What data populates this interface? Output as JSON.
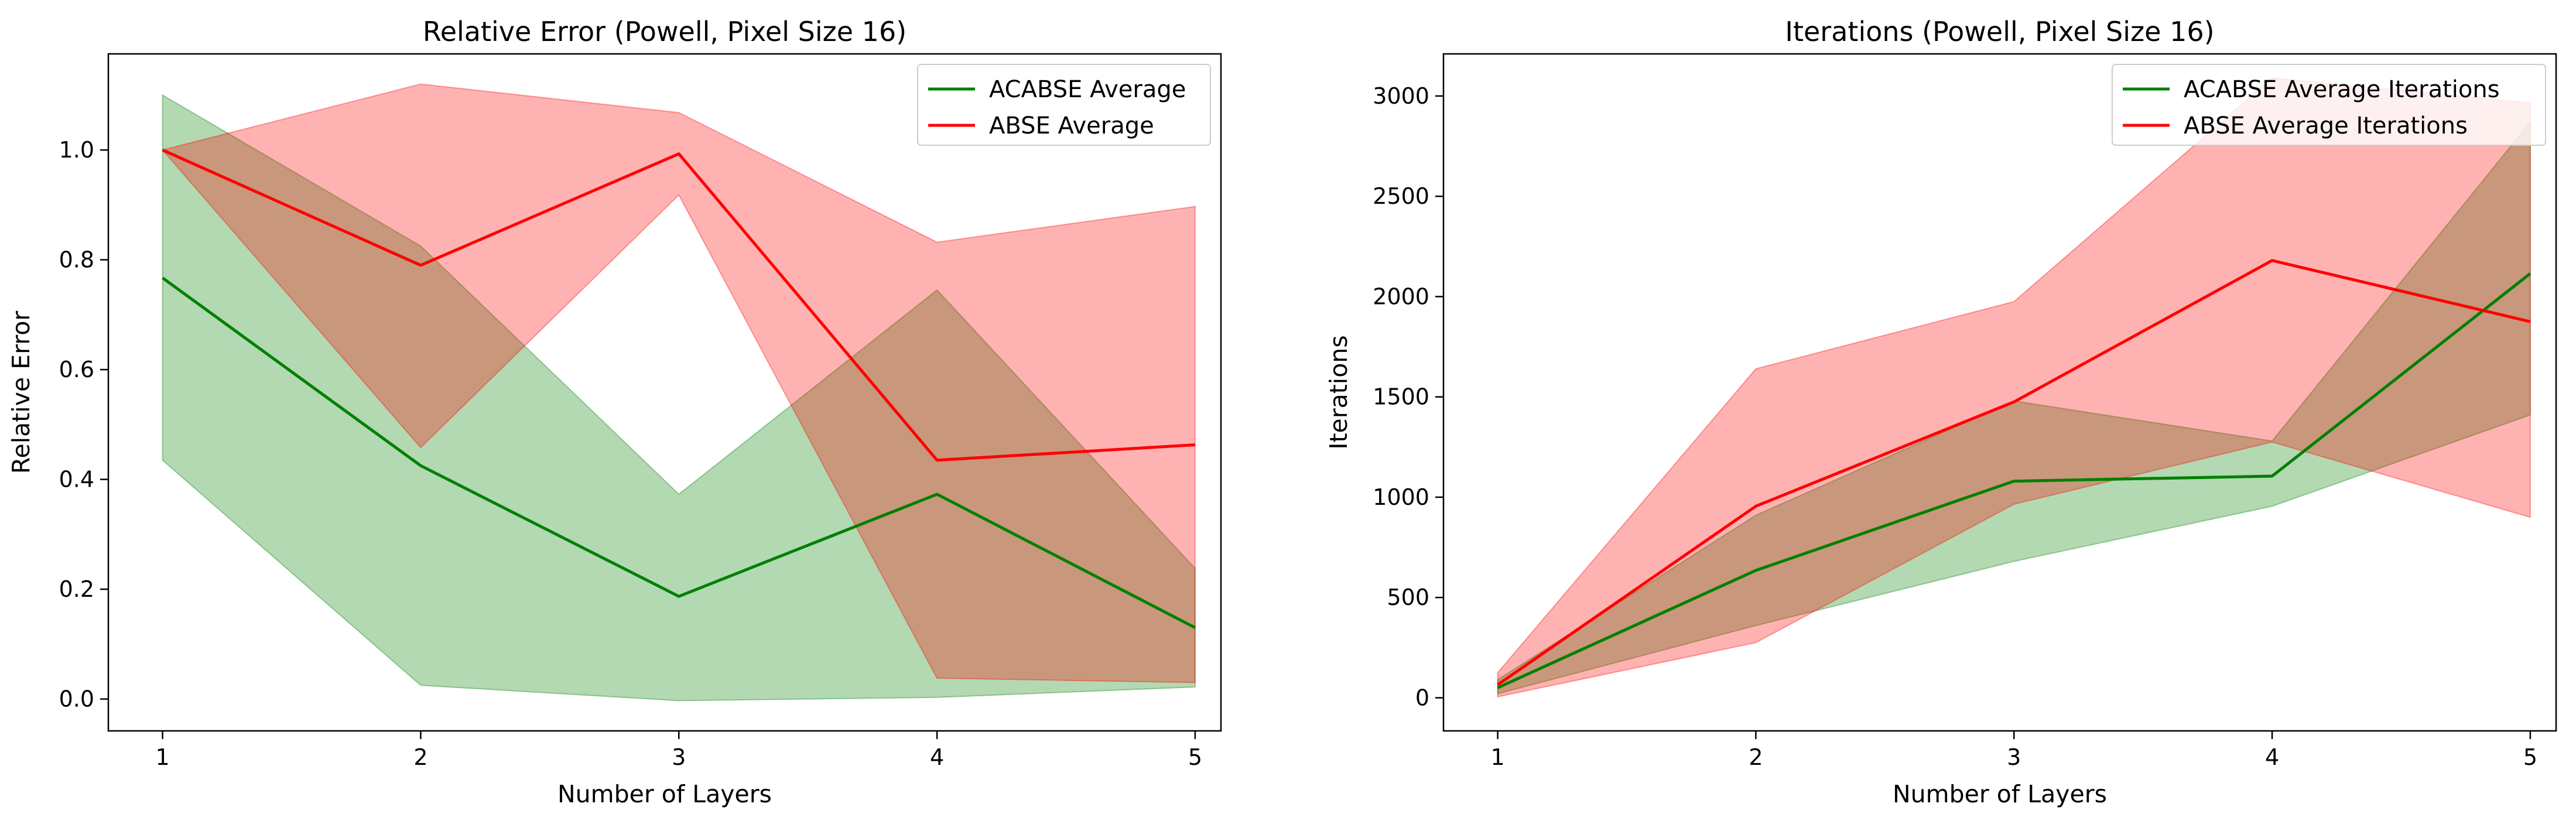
{
  "chart_data": [
    {
      "type": "line",
      "title": "Relative Error (Powell, Pixel Size 16)",
      "xlabel": "Number of Layers",
      "ylabel": "Relative Error",
      "x": [
        1,
        2,
        3,
        4,
        5
      ],
      "xlim": [
        0.79,
        5.1
      ],
      "ylim": [
        -0.058,
        1.175
      ],
      "xticks": [
        "1",
        "2",
        "3",
        "4",
        "5"
      ],
      "yticks": [
        "0.0",
        "0.2",
        "0.4",
        "0.6",
        "0.8",
        "1.0"
      ],
      "legend_position": "top-right",
      "grid": false,
      "series": [
        {
          "name": "ACABSE Average",
          "color": "#008000",
          "values": [
            0.767,
            0.425,
            0.187,
            0.373,
            0.13
          ],
          "band_lower": [
            0.435,
            0.025,
            -0.003,
            0.003,
            0.022
          ],
          "band_upper": [
            1.1,
            0.825,
            0.373,
            0.745,
            0.238
          ],
          "band_color": "#008000",
          "band_opacity": 0.3
        },
        {
          "name": "ABSE Average",
          "color": "#ff0000",
          "values": [
            1.0,
            0.79,
            0.993,
            0.435,
            0.463
          ],
          "band_lower": [
            1.0,
            0.458,
            0.918,
            0.038,
            0.03
          ],
          "band_upper": [
            1.0,
            1.12,
            1.068,
            0.832,
            0.897
          ],
          "band_color": "#ff0000",
          "band_opacity": 0.3
        }
      ]
    },
    {
      "type": "line",
      "title": "Iterations (Powell, Pixel Size 16)",
      "xlabel": "Number of Layers",
      "ylabel": "Iterations",
      "x": [
        1,
        2,
        3,
        4,
        5
      ],
      "xlim": [
        0.79,
        5.1
      ],
      "ylim": [
        -165,
        3210
      ],
      "xticks": [
        "1",
        "2",
        "3",
        "4",
        "5"
      ],
      "yticks": [
        "0",
        "500",
        "1000",
        "1500",
        "2000",
        "2500",
        "3000"
      ],
      "legend_position": "top-right",
      "grid": false,
      "series": [
        {
          "name": "ACABSE Average Iterations",
          "color": "#008000",
          "values": [
            50,
            635,
            1080,
            1105,
            2115
          ],
          "band_lower": [
            20,
            360,
            680,
            955,
            1410
          ],
          "band_upper": [
            90,
            910,
            1480,
            1280,
            2870
          ],
          "band_color": "#008000",
          "band_opacity": 0.3
        },
        {
          "name": "ABSE Average Iterations",
          "color": "#ff0000",
          "values": [
            65,
            955,
            1475,
            2180,
            1875
          ],
          "band_lower": [
            5,
            275,
            965,
            1275,
            900
          ],
          "band_upper": [
            125,
            1640,
            1975,
            3090,
            2965
          ],
          "band_color": "#ff0000",
          "band_opacity": 0.3
        }
      ]
    }
  ]
}
